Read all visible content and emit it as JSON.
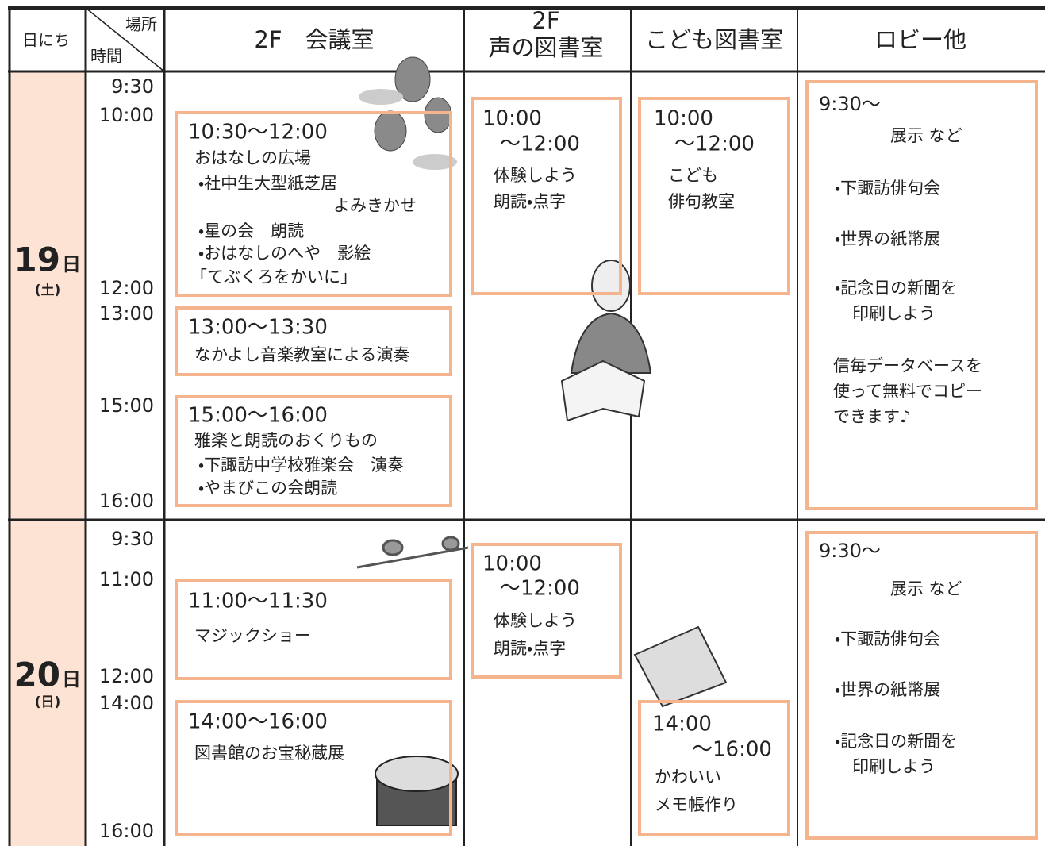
{
  "header": {
    "date_label": "日にち",
    "place_label": "場所",
    "time_label": "時間",
    "columns": {
      "meeting_room": [
        "2F　会議室"
      ],
      "voice_library": [
        "2F",
        "声の図書室"
      ],
      "kids_library": [
        "こども図書室"
      ],
      "lobby": [
        "ロビー他"
      ]
    }
  },
  "days": [
    {
      "day": "19",
      "unit": "日",
      "weekday": "(土)",
      "times": [
        "9:30",
        "10:00",
        "12:00",
        "13:00",
        "15:00",
        "16:00"
      ],
      "events": {
        "meeting_room": [
          [
            "10:30〜12:00",
            "おはなしの広場",
            "・社中生大型紙芝居",
            "よみきかせ",
            "・星の会　朗読",
            "・おはなしのへや　影絵",
            "「てぶくろをかいに」"
          ],
          [
            "13:00〜13:30",
            "なかよし音楽教室による演奏"
          ],
          [
            "15:00〜16:00",
            "雅楽と朗読のおくりもの",
            "・下諏訪中学校雅楽会　演奏",
            "・やまびこの会朗読"
          ]
        ],
        "voice_library": [
          [
            "10:00",
            "〜12:00",
            "体験しよう",
            "朗読・点字"
          ]
        ],
        "kids_library": [
          [
            "10:00",
            "〜12:00",
            "こども",
            "俳句教室"
          ]
        ],
        "lobby": [
          [
            "9:30〜",
            "展示 など",
            "・下諏訪俳句会",
            "・世界の紙幣展",
            "・記念日の新聞を",
            "印刷しよう",
            "信毎データベースを",
            "使って無料でコピー",
            "できます♪"
          ]
        ]
      }
    },
    {
      "day": "20",
      "unit": "日",
      "weekday": "(日)",
      "times": [
        "9:30",
        "11:00",
        "12:00",
        "14:00",
        "16:00"
      ],
      "events": {
        "meeting_room": [
          [
            "11:00〜11:30",
            "マジックショー"
          ],
          [
            "14:00〜16:00",
            "図書館のお宝秘蔵展"
          ]
        ],
        "voice_library": [
          [
            "10:00",
            "〜12:00",
            "体験しよう",
            "朗読・点字"
          ]
        ],
        "kids_library": [
          [
            "14:00",
            "〜16:00",
            "かわいい",
            "メモ帳作り"
          ]
        ],
        "lobby": [
          [
            "9:30〜",
            "展示 など",
            "・下諏訪俳句会",
            "・世界の紙幣展",
            "・記念日の新聞を",
            "印刷しよう"
          ]
        ]
      }
    }
  ]
}
